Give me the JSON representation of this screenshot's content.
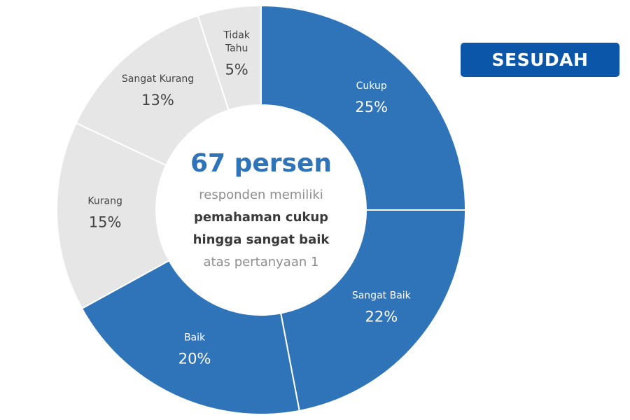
{
  "badge": {
    "label": "SESUDAH"
  },
  "center": {
    "headline": "67 persen",
    "line1": "responden memiliki",
    "line2": "pemahaman cukup",
    "line3": "hingga sangat baik",
    "line4": "atas pertanyaan 1"
  },
  "colors": {
    "primary": "#2f74b8",
    "secondary": "#e6e6e6",
    "badge": "#0b56a8"
  },
  "chart_data": {
    "type": "pie",
    "variant": "donut",
    "categories": [
      "Cukup",
      "Sangat Baik",
      "Baik",
      "Kurang",
      "Sangat Kurang",
      "Tidak Tahu"
    ],
    "values": [
      25,
      22,
      20,
      15,
      13,
      5
    ],
    "labels": [
      "25%",
      "22%",
      "20%",
      "15%",
      "13%",
      "5%"
    ],
    "category_lines": [
      [
        "Cukup"
      ],
      [
        "Sangat Baik"
      ],
      [
        "Baik"
      ],
      [
        "Kurang"
      ],
      [
        "Sangat Kurang"
      ],
      [
        "Tidak",
        "Tahu"
      ]
    ],
    "slice_colors": [
      "#2f74b8",
      "#2f74b8",
      "#2f74b8",
      "#e6e6e6",
      "#e6e6e6",
      "#e6e6e6"
    ],
    "label_colors": [
      "#ffffff",
      "#ffffff",
      "#ffffff",
      "#444444",
      "#444444",
      "#444444"
    ],
    "start_angle_deg": 0,
    "direction": "clockwise"
  }
}
